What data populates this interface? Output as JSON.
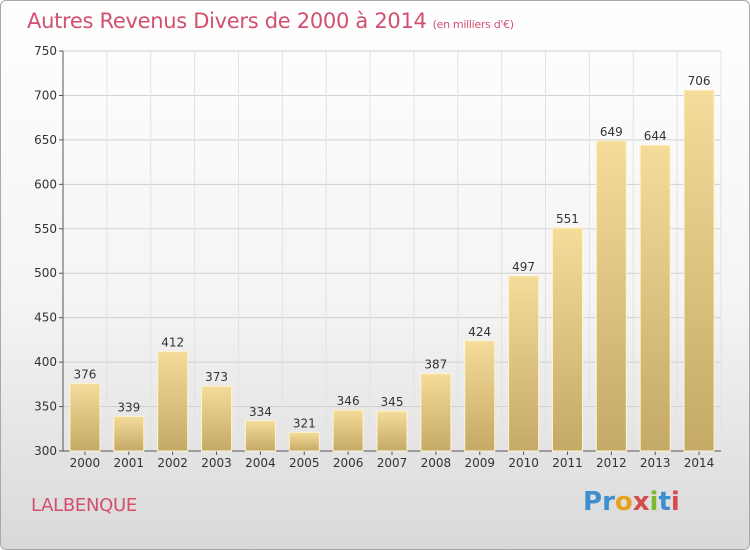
{
  "header": {
    "title": "Autres Revenus Divers de 2000 à 2014",
    "subtitle": "(en milliers d'€)"
  },
  "place": "LALBENQUE",
  "logo": {
    "letters": [
      "P",
      "r",
      "o",
      "x",
      "i",
      "t",
      "i"
    ]
  },
  "colors": {
    "title": "#d2506e",
    "bar_top": "#f5dc9a",
    "bar_bottom": "#c5a966",
    "grid": "#d0d0d0"
  },
  "chart_data": {
    "type": "bar",
    "title": "Autres Revenus Divers de 2000 à 2014",
    "subtitle": "(en milliers d'€)",
    "xlabel": "",
    "ylabel": "",
    "categories": [
      "2000",
      "2001",
      "2002",
      "2003",
      "2004",
      "2005",
      "2006",
      "2007",
      "2008",
      "2009",
      "2010",
      "2011",
      "2012",
      "2013",
      "2014"
    ],
    "values": [
      376,
      339,
      412,
      373,
      334,
      321,
      346,
      345,
      387,
      424,
      497,
      551,
      649,
      644,
      706
    ],
    "ylim": [
      300,
      750
    ],
    "yticks": [
      300,
      350,
      400,
      450,
      500,
      550,
      600,
      650,
      700,
      750
    ],
    "grid": true,
    "legend": "none"
  }
}
